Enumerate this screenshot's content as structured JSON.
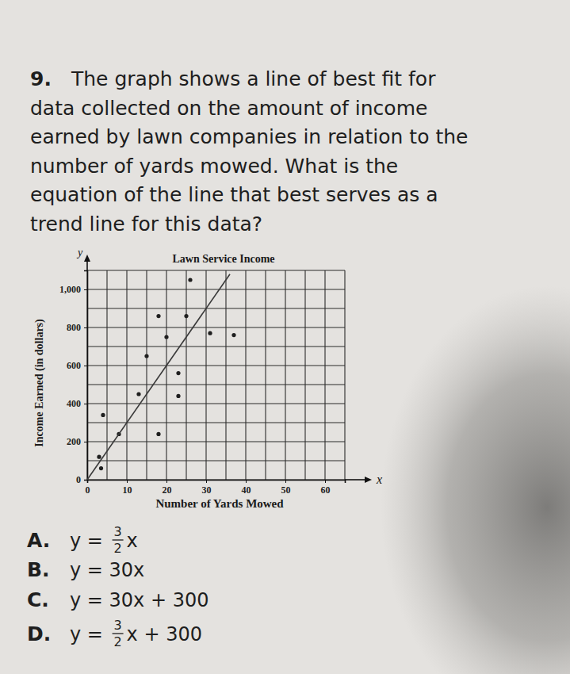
{
  "question": {
    "number": "9.",
    "lines": [
      "The graph shows a line of best fit for",
      "data collected on the amount of income",
      "earned by lawn companies in relation to the",
      "number of yards mowed.  What is the",
      "equation of the line that best serves as a",
      "trend line for this data?"
    ]
  },
  "chart_data": {
    "type": "scatter",
    "title": "Lawn Service Income",
    "x_label": "Number of Yards Mowed",
    "y_label": "Income Earned (in dollars)",
    "x_axis_letter": "x",
    "y_axis_letter": "y",
    "xlim": [
      0,
      65
    ],
    "xticks": [
      0,
      10,
      20,
      30,
      40,
      50,
      60
    ],
    "ylim": [
      0,
      1100
    ],
    "yticks": [
      0,
      200,
      400,
      600,
      800,
      {
        "value": 1000,
        "label": "1,000"
      }
    ],
    "grid": true,
    "series": [
      {
        "type": "scatter",
        "marker": "circle",
        "color": "#1f1f1f",
        "x": [
          3.5,
          3,
          8,
          4,
          13,
          18,
          15,
          23,
          23,
          20,
          25,
          26,
          31,
          37,
          18
        ],
        "values": [
          60,
          120,
          240,
          340,
          450,
          240,
          650,
          560,
          440,
          750,
          860,
          1050,
          770,
          760,
          860
        ]
      },
      {
        "type": "line",
        "line_style": "solid",
        "color": "#3a3a3a",
        "x": [
          0,
          36
        ],
        "values": [
          0,
          1080
        ]
      }
    ]
  },
  "choices": [
    {
      "letter": "A.",
      "before": "y = ",
      "fraction": {
        "numerator": "3",
        "denominator": "2"
      },
      "after": "x"
    },
    {
      "letter": "B.",
      "before": "y = 30x"
    },
    {
      "letter": "C.",
      "before": "y = 30x + 300"
    },
    {
      "letter": "D.",
      "before": "y = ",
      "fraction": {
        "numerator": "3",
        "denominator": "2"
      },
      "after": "x + 300"
    }
  ]
}
